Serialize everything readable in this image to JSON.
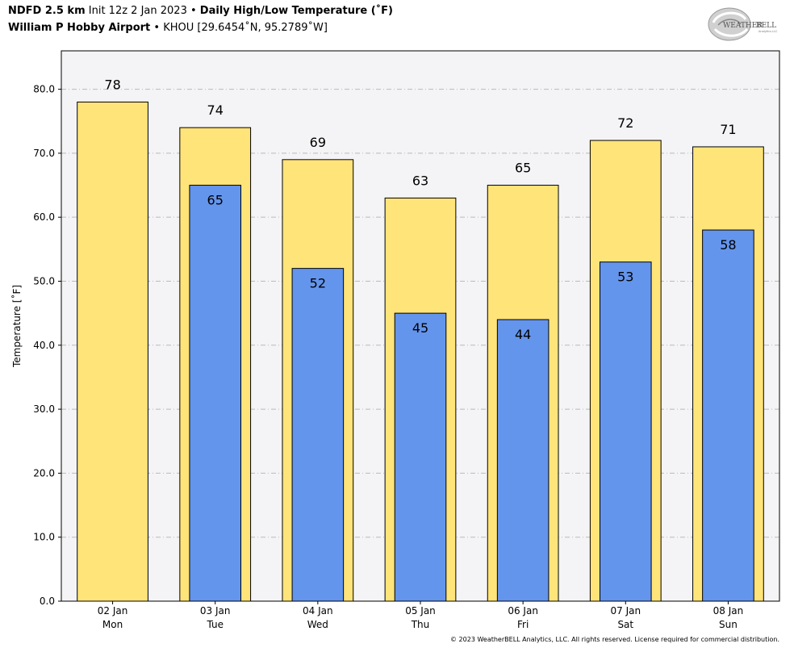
{
  "header": {
    "model": "NDFD 2.5 km",
    "init": "Init 12z 2 Jan 2023",
    "sep": "•",
    "product": "Daily High/Low Temperature (˚F)",
    "station_name": "William P Hobby Airport",
    "station_info": "KHOU [29.6454˚N, 95.2789˚W]"
  },
  "logo": {
    "text_a": "WEATHER",
    "text_b": "BELL",
    "sub": "Analytics LLC"
  },
  "copyright": "© 2023 WeatherBELL Analytics, LLC. All rights reserved. License required for commercial distribution.",
  "colors": {
    "high": "#FFE47A",
    "low": "#6495ED",
    "plot_bg": "#F4F3F5",
    "grid": "#BBBBBB"
  },
  "chart_data": {
    "type": "bar",
    "ylabel": "Temperature [˚F]",
    "ylim": [
      0,
      86
    ],
    "yticks": [
      0,
      10,
      20,
      30,
      40,
      50,
      60,
      70,
      80
    ],
    "ytick_labels": [
      "0.0",
      "10.0",
      "20.0",
      "30.0",
      "40.0",
      "50.0",
      "60.0",
      "70.0",
      "80.0"
    ],
    "grid": true,
    "categories": [
      "02 Jan",
      "03 Jan",
      "04 Jan",
      "05 Jan",
      "06 Jan",
      "07 Jan",
      "08 Jan"
    ],
    "days": [
      "Mon",
      "Tue",
      "Wed",
      "Thu",
      "Fri",
      "Sat",
      "Sun"
    ],
    "series": [
      {
        "values": [
          78,
          74,
          69,
          63,
          65,
          72,
          71
        ]
      },
      {
        "values": [
          null,
          65,
          52,
          45,
          44,
          53,
          58
        ]
      }
    ]
  }
}
